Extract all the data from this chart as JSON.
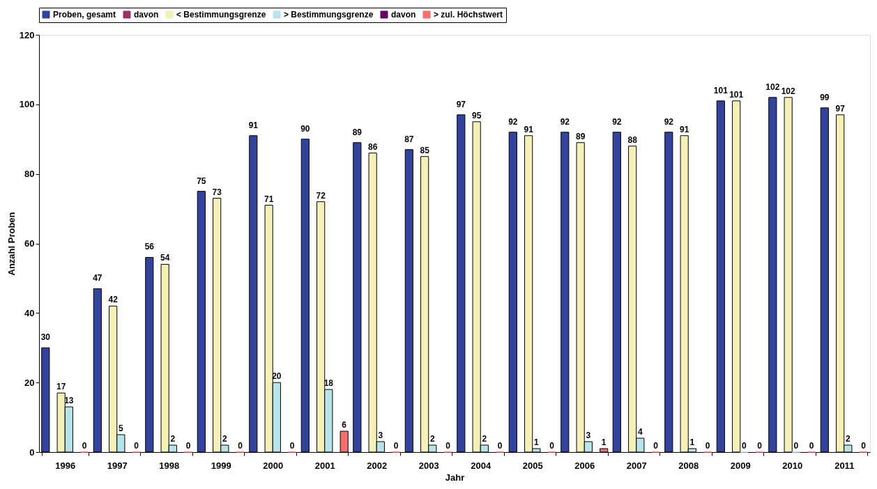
{
  "chart_data": {
    "type": "bar",
    "xlabel": "Jahr",
    "ylabel": "Anzahl Proben",
    "categories": [
      "1996",
      "1997",
      "1998",
      "1999",
      "2000",
      "2001",
      "2002",
      "2003",
      "2004",
      "2005",
      "2006",
      "2007",
      "2008",
      "2009",
      "2010",
      "2011"
    ],
    "series": [
      {
        "name": "Proben, gesamt",
        "color": "#33439c",
        "values": [
          30,
          47,
          56,
          75,
          91,
          90,
          89,
          87,
          97,
          92,
          92,
          92,
          92,
          101,
          102,
          99
        ]
      },
      {
        "name": "davon",
        "color": "#993366",
        "values": [
          null,
          null,
          null,
          null,
          null,
          null,
          null,
          null,
          null,
          null,
          null,
          null,
          null,
          null,
          null,
          null
        ]
      },
      {
        "name": "< Bestimmungsgrenze",
        "color": "#f4f0b8",
        "values": [
          17,
          42,
          54,
          73,
          71,
          72,
          86,
          85,
          95,
          91,
          89,
          88,
          91,
          101,
          102,
          97
        ]
      },
      {
        "name": "> Bestimmungsgrenze",
        "color": "#b7e4e8",
        "values": [
          13,
          5,
          2,
          2,
          20,
          18,
          3,
          2,
          2,
          1,
          3,
          4,
          1,
          0,
          0,
          2
        ]
      },
      {
        "name": "davon",
        "color": "#660066",
        "values": [
          null,
          null,
          null,
          null,
          null,
          null,
          null,
          null,
          null,
          null,
          null,
          null,
          null,
          null,
          null,
          null
        ]
      },
      {
        "name": "> zul. Höchstwert",
        "color": "#f07070",
        "values": [
          0,
          0,
          0,
          0,
          0,
          6,
          0,
          0,
          0,
          0,
          1,
          0,
          0,
          0,
          0,
          0
        ]
      }
    ],
    "ylim": [
      0,
      120
    ],
    "yticks": [
      0,
      20,
      40,
      60,
      80,
      100,
      120
    ],
    "grid": false,
    "legend": "top",
    "data_labels": true
  }
}
